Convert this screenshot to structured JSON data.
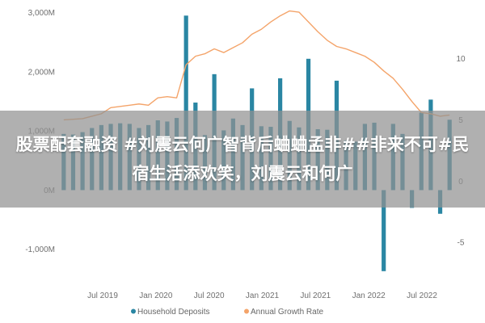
{
  "chart_data": {
    "type": "bar",
    "title": "",
    "xlabel": "",
    "ylabel_left": "",
    "ylabel_right": "",
    "left_axis": {
      "min": -1400,
      "max": 3050,
      "ticks": [
        3000,
        2000,
        1000,
        0,
        -1000
      ],
      "tick_labels": [
        "3,000M",
        "2,000M",
        "1,000M",
        "0M",
        "-1,000M"
      ]
    },
    "right_axis": {
      "min": -7.5,
      "max": 14,
      "ticks": [
        10,
        5,
        0,
        -5
      ],
      "tick_labels": [
        "10",
        "5",
        "0",
        "-5"
      ]
    },
    "x_tick_labels": [
      "Jul 2019",
      "Jan 2020",
      "Jul 2020",
      "Jan 2021",
      "Jul 2021",
      "Jan 2022",
      "Jul 2022"
    ],
    "grid": false,
    "legend_position": "bottom",
    "series": [
      {
        "name": "Household Deposits",
        "kind": "bar",
        "axis": "left",
        "color": "#2a86a3",
        "values": [
          950,
          940,
          980,
          1050,
          1100,
          1120,
          1130,
          1120,
          1050,
          1100,
          1180,
          1160,
          1220,
          2950,
          1480,
          930,
          1960,
          1010,
          1210,
          1100,
          1720,
          1080,
          1070,
          1890,
          1170,
          1060,
          2220,
          1030,
          1020,
          1850,
          840,
          820,
          1120,
          1140,
          -1370,
          1120,
          950,
          -300,
          1310,
          1530,
          -400,
          1190
        ]
      },
      {
        "name": "Annual Growth Rate",
        "kind": "line",
        "axis": "right",
        "color": "#f4a46a",
        "values": [
          5.0,
          5.05,
          5.1,
          5.3,
          5.5,
          6.0,
          6.1,
          6.2,
          6.3,
          6.2,
          6.8,
          6.9,
          6.8,
          9.5,
          10.2,
          10.4,
          10.8,
          10.5,
          10.9,
          11.3,
          12.0,
          12.4,
          13.0,
          13.5,
          13.9,
          13.8,
          13.0,
          12.2,
          11.5,
          11.0,
          10.8,
          10.5,
          10.2,
          9.7,
          9.0,
          8.4,
          7.5,
          6.5,
          5.6,
          5.5,
          5.3,
          5.4
        ]
      }
    ]
  },
  "overlay_text": "股票配套融资 #刘震云何广智背后蛐蛐孟非##非来不可#民宿生活添欢笑，刘震云和何广"
}
